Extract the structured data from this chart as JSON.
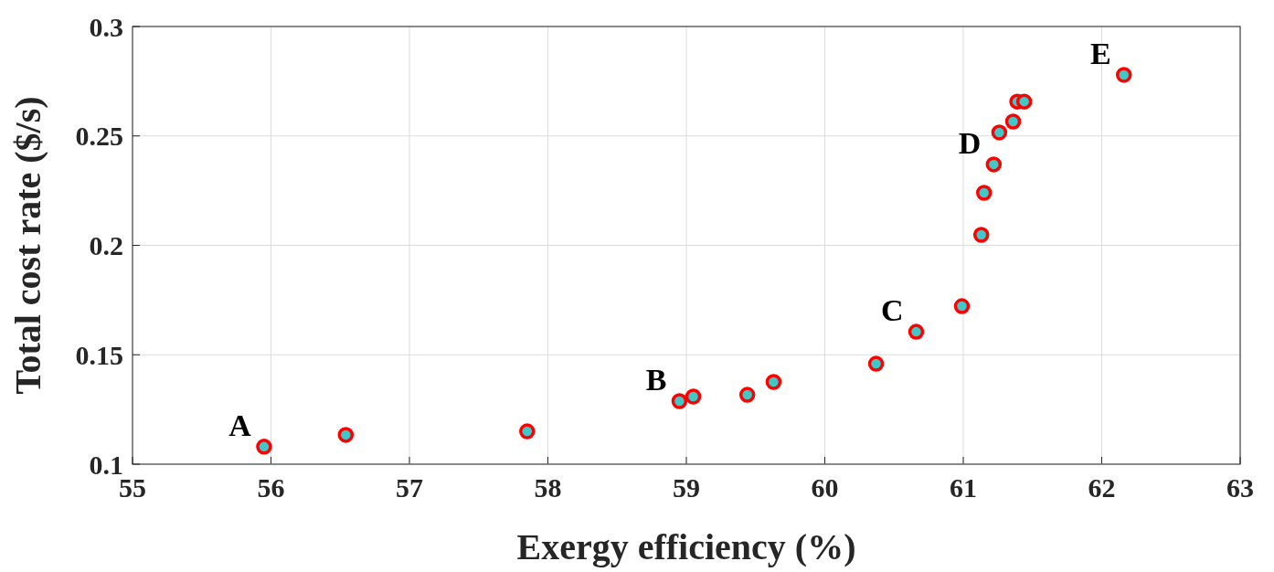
{
  "chart_data": {
    "type": "scatter",
    "xlabel": "Exergy efficiency (%)",
    "ylabel": "Total cost rate ($/s)",
    "x": [
      55.95,
      56.54,
      57.85,
      58.95,
      59.05,
      59.44,
      59.63,
      60.37,
      60.66,
      60.99,
      61.13,
      61.15,
      61.22,
      61.26,
      61.36,
      61.39,
      61.44,
      62.16
    ],
    "series": [
      {
        "color": "#ff0000",
        "values": [
          0.108,
          0.1134,
          0.115,
          0.1288,
          0.1309,
          0.1317,
          0.1376,
          0.1459,
          0.1605,
          0.1722,
          0.2048,
          0.224,
          0.237,
          0.2516,
          0.2566,
          0.2657,
          0.2657,
          0.2779
        ]
      }
    ],
    "marker": "circle",
    "grid": true,
    "xlim": [
      55,
      63
    ],
    "xticks": [
      55,
      56,
      57,
      58,
      59,
      60,
      61,
      62,
      63
    ],
    "ylim": [
      0.1,
      0.3
    ],
    "yticks": [
      0.1,
      0.15,
      0.2,
      0.25,
      0.3
    ],
    "annotations": [
      {
        "text": "A",
        "x": 55.95,
        "y": 0.108
      },
      {
        "text": "B",
        "x": 58.95,
        "y": 0.1288
      },
      {
        "text": "C",
        "x": 60.66,
        "y": 0.1605
      },
      {
        "text": "D",
        "x": 61.22,
        "y": 0.237
      },
      {
        "text": "E",
        "x": 62.16,
        "y": 0.2779
      }
    ]
  }
}
